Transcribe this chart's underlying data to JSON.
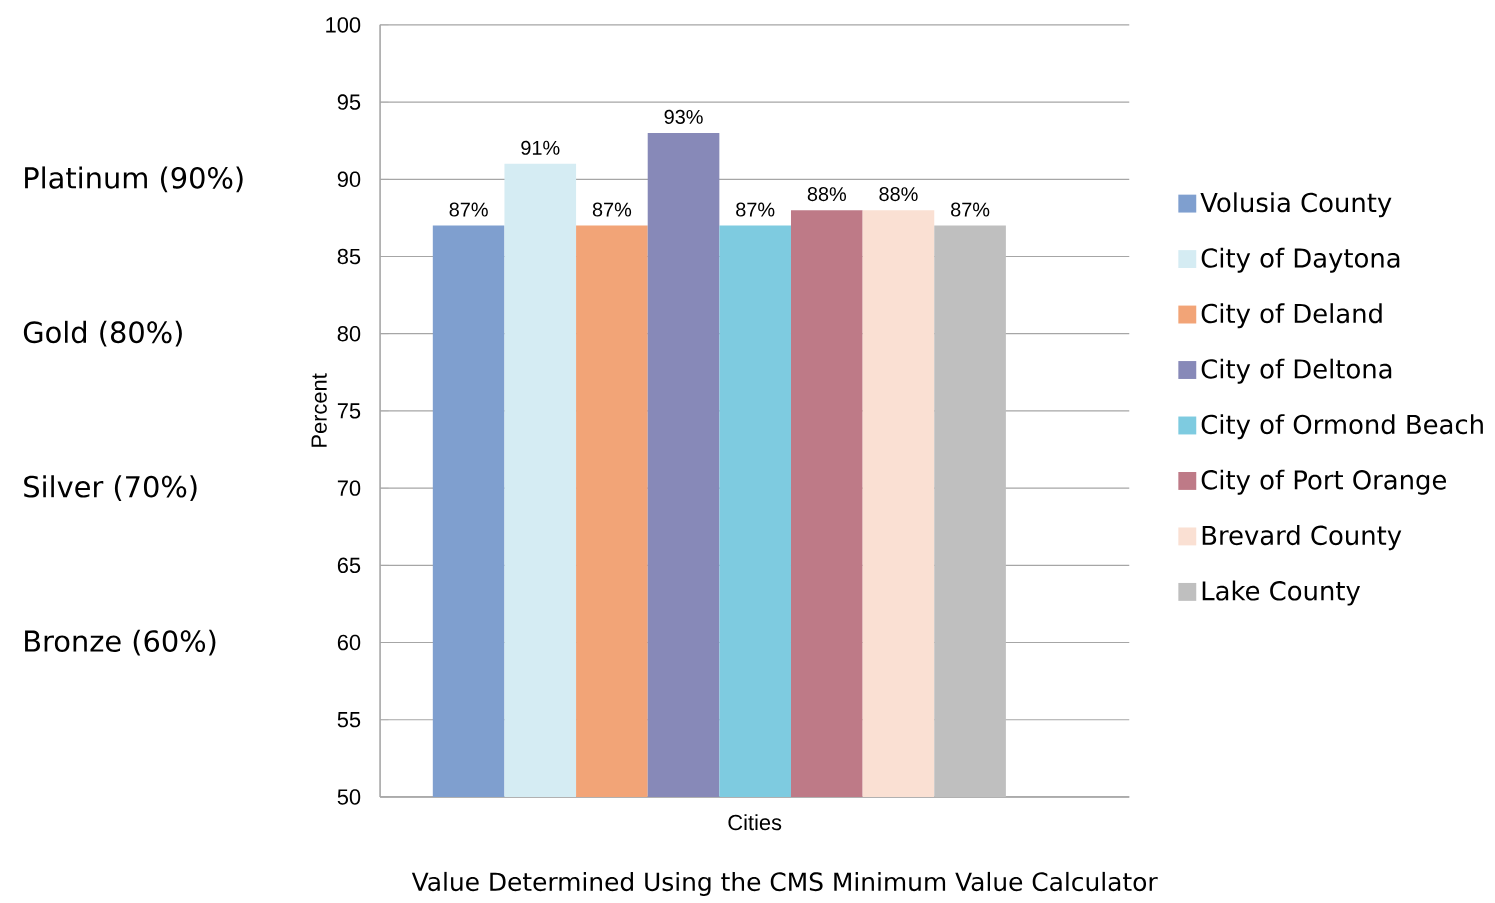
{
  "chart_data": {
    "type": "bar",
    "xlabel": "Cities",
    "ylabel": "Percent",
    "categories": [
      null
    ],
    "series": [
      {
        "name": "Volusia County",
        "color": "#7f9fcf",
        "values": [
          87
        ],
        "value_labels": [
          "87%"
        ]
      },
      {
        "name": "City of Daytona",
        "color": "#d5ecf3",
        "values": [
          91
        ],
        "value_labels": [
          "91%"
        ]
      },
      {
        "name": "City of Deland",
        "color": "#f2a477",
        "values": [
          87
        ],
        "value_labels": [
          "87%"
        ]
      },
      {
        "name": "City of Deltona",
        "color": "#8789b8",
        "values": [
          93
        ],
        "value_labels": [
          "93%"
        ]
      },
      {
        "name": "City of Ormond Beach",
        "color": "#7ecbe0",
        "values": [
          87
        ],
        "value_labels": [
          "87%"
        ]
      },
      {
        "name": "City of Port Orange",
        "color": "#be7a87",
        "values": [
          88
        ],
        "value_labels": [
          "88%"
        ]
      },
      {
        "name": "Brevard County",
        "color": "#fae0d3",
        "values": [
          88
        ],
        "value_labels": [
          "88%"
        ]
      },
      {
        "name": "Lake County",
        "color": "#bfbfbf",
        "values": [
          87
        ],
        "value_labels": [
          "87%"
        ]
      }
    ],
    "ylim": [
      50,
      100
    ],
    "yticks": [
      50,
      55,
      60,
      65,
      70,
      75,
      80,
      85,
      90,
      95,
      100
    ],
    "grid": "y",
    "legend": "right",
    "annotations": [
      "Platinum (90%)",
      "Gold (80%)",
      "Silver (70%)",
      "Bronze (60%)",
      "Value Determined Using the CMS Minimum Value Calculator"
    ]
  }
}
